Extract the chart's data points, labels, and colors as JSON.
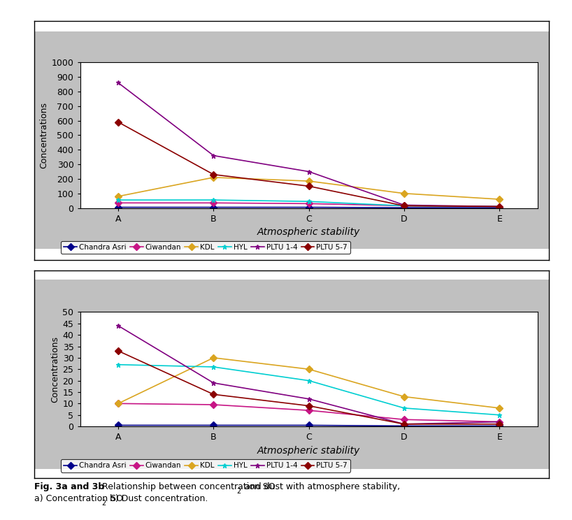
{
  "categories": [
    "A",
    "B",
    "C",
    "D",
    "E"
  ],
  "chart1": {
    "ylabel": "Concentrations",
    "xlabel": "Atmospheric stability",
    "ylim": [
      0,
      1000
    ],
    "yticks": [
      0,
      100,
      200,
      300,
      400,
      500,
      600,
      700,
      800,
      900,
      1000
    ],
    "series": {
      "Chandra Asri": {
        "values": [
          5,
          5,
          5,
          2,
          2
        ],
        "color": "#00008B",
        "marker": "D"
      },
      "Ciwandan": {
        "values": [
          35,
          35,
          30,
          15,
          10
        ],
        "color": "#C71585",
        "marker": "D"
      },
      "KDL": {
        "values": [
          80,
          210,
          185,
          100,
          60
        ],
        "color": "#DAA520",
        "marker": "D"
      },
      "HYL": {
        "values": [
          55,
          55,
          45,
          15,
          10
        ],
        "color": "#00CED1",
        "marker": "*"
      },
      "PLTU 1-4": {
        "values": [
          860,
          360,
          250,
          20,
          10
        ],
        "color": "#800080",
        "marker": "*"
      },
      "PLTU 5-7": {
        "values": [
          590,
          230,
          150,
          15,
          10
        ],
        "color": "#8B0000",
        "marker": "D"
      }
    }
  },
  "chart2": {
    "ylabel": "Concentrations",
    "xlabel": "Atmospheric stability",
    "ylim": [
      0,
      50
    ],
    "yticks": [
      0,
      5,
      10,
      15,
      20,
      25,
      30,
      35,
      40,
      45,
      50
    ],
    "series": {
      "Chandra Asri": {
        "values": [
          0.5,
          0.5,
          0.5,
          0.2,
          0.2
        ],
        "color": "#00008B",
        "marker": "D"
      },
      "Ciwandan": {
        "values": [
          10,
          9.5,
          7,
          3,
          2
        ],
        "color": "#C71585",
        "marker": "D"
      },
      "KDL": {
        "values": [
          10,
          30,
          25,
          13,
          8
        ],
        "color": "#DAA520",
        "marker": "D"
      },
      "HYL": {
        "values": [
          27,
          26,
          20,
          8,
          5
        ],
        "color": "#00CED1",
        "marker": "*"
      },
      "PLTU 1-4": {
        "values": [
          44,
          19,
          12,
          1,
          2
        ],
        "color": "#800080",
        "marker": "*"
      },
      "PLTU 5-7": {
        "values": [
          33,
          14,
          9,
          1,
          1
        ],
        "color": "#8B0000",
        "marker": "D"
      }
    }
  },
  "legend_order": [
    "Chandra Asri",
    "Ciwandan",
    "KDL",
    "HYL",
    "PLTU 1-4",
    "PLTU 5-7"
  ],
  "fig_width": 8.18,
  "fig_height": 7.44,
  "dpi": 100
}
